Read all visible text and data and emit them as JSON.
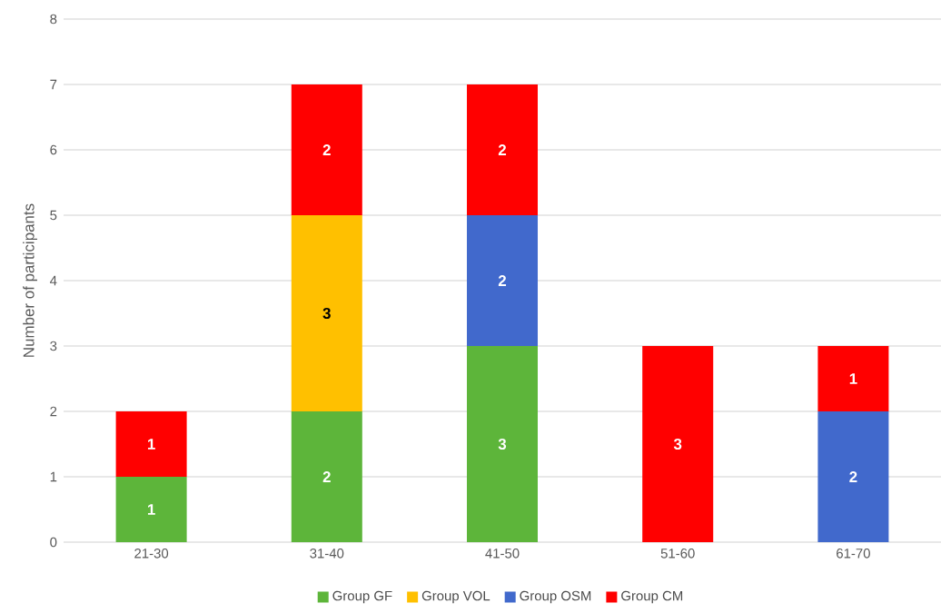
{
  "chart_data": {
    "type": "bar",
    "stacked": true,
    "ylabel": "Number of participants",
    "categories": [
      "21-30",
      "31-40",
      "41-50",
      "51-60",
      "61-70"
    ],
    "series": [
      {
        "name": "Group GF",
        "color": "#5db53a",
        "values": [
          1,
          2,
          3,
          0,
          0
        ],
        "value_labels": [
          "1",
          "2",
          "3",
          null,
          null
        ]
      },
      {
        "name": "Group VOL",
        "color": "#ffc000",
        "values": [
          0,
          3,
          0,
          0,
          0
        ],
        "value_labels": [
          null,
          "3",
          null,
          null,
          null
        ]
      },
      {
        "name": "Group OSM",
        "color": "#4169cc",
        "values": [
          0,
          0,
          2,
          0,
          2
        ],
        "value_labels": [
          null,
          null,
          "2",
          null,
          "2"
        ]
      },
      {
        "name": "Group CM",
        "color": "#ff0000",
        "values": [
          1,
          2,
          2,
          3,
          1
        ],
        "value_labels": [
          "1",
          "2",
          "2",
          "3",
          "1"
        ]
      }
    ],
    "ylim": [
      0,
      8
    ],
    "yticks": [
      0,
      1,
      2,
      3,
      4,
      5,
      6,
      7,
      8
    ],
    "grid": "y",
    "legend": "bottom"
  }
}
